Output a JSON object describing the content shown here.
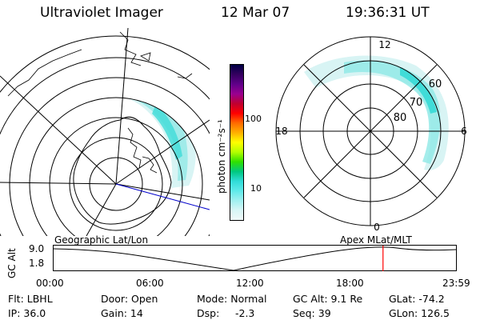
{
  "header": {
    "instrument": "Ultraviolet Imager",
    "date": "12 Mar 07",
    "time": "19:36:31 UT"
  },
  "colorbar": {
    "unit_label": "photon cm⁻²s⁻¹",
    "scale": "log",
    "tick_labels": [
      "100",
      "10"
    ],
    "colors": [
      "#000044",
      "#350060",
      "#60008a",
      "#9a0090",
      "#c00030",
      "#ff0000",
      "#ff6a00",
      "#ffb000",
      "#ffff00",
      "#b2ff00",
      "#30e000",
      "#00c880",
      "#30dcd8",
      "#60eaea",
      "#a0f0f0",
      "#d8f6f6",
      "#f0f8f8"
    ]
  },
  "maps": {
    "geographic_label": "Geographic Lat/Lon",
    "apex_label": "Apex  MLat/MLT",
    "mlt_labels": [
      "12",
      "18",
      "6",
      "0"
    ],
    "mlat_labels": [
      "60",
      "70",
      "80"
    ],
    "aurora_color": "#40dcd8"
  },
  "timeline": {
    "ylabel": "GC Alt",
    "y_ticks": [
      "9.0",
      "1.8"
    ],
    "x_ticks": [
      "00:00",
      "06:00",
      "12:00",
      "18:00",
      "23:59"
    ],
    "marker_color": "#ff0000",
    "marker_fraction": 0.817
  },
  "status": {
    "filter": "Flt: LBHL",
    "ip": "IP: 36.0",
    "door": "Door: Open",
    "gain": "Gain: 14",
    "mode": "Mode: Normal",
    "dsp_label": "Dsp:",
    "dsp_value": "-2.3",
    "gc_alt": "GC Alt: 9.1 Re",
    "seq": "Seq: 39",
    "glat": "GLat: -74.2",
    "glon": "GLon: 126.5"
  }
}
